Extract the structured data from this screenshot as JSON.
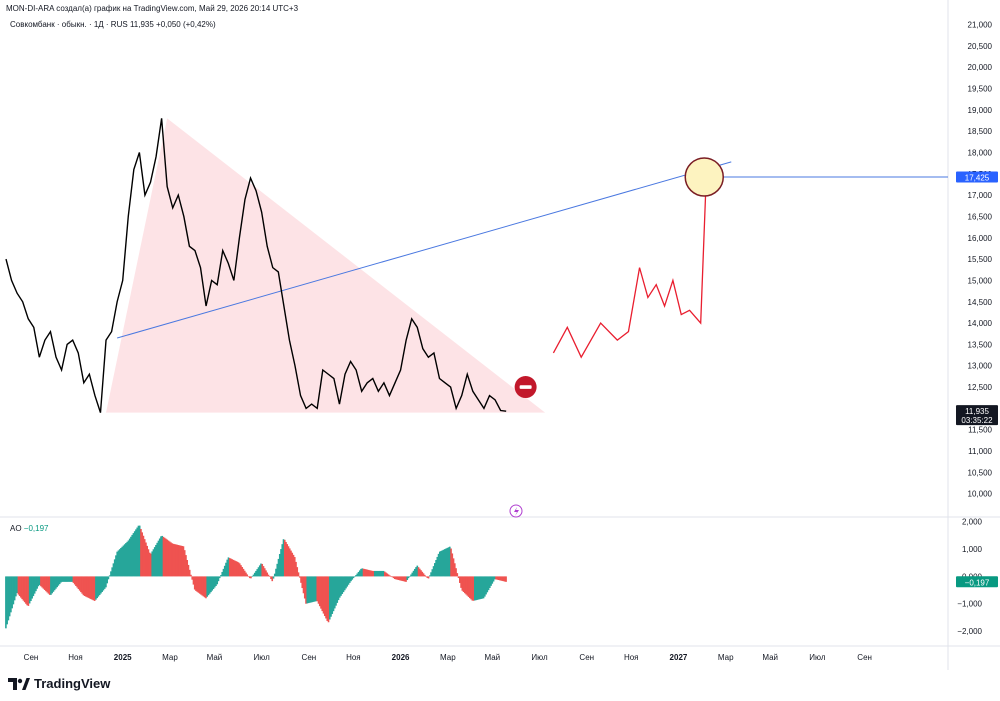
{
  "header": {
    "attribution": "MON-DI-ARA создал(а) график на TradingView.com, Май 29, 2026 20:14 UTC+3",
    "symbol_line": "Совкомбанк · обыкн. · 1Д · RUS",
    "last_price": "11,935",
    "change": "+0,050 (+0,42%)"
  },
  "indicator": {
    "name": "AO",
    "value": "−0,197"
  },
  "price_badges": {
    "target": "17,425",
    "current": "11,935",
    "countdown": "03:35:22",
    "ao": "−0,197"
  },
  "brand": {
    "logo_icon": "tradingview-logo-icon",
    "name": "TradingView"
  },
  "colors": {
    "price_line": "#000000",
    "forecast_line": "#e91e2f",
    "trend_line": "#4a78e0",
    "triangle_fill": "#fde3e6",
    "ao_up": "#26a69a",
    "ao_down": "#ef5350",
    "target_badge": "#2962ff",
    "ao_badge": "#089981",
    "stop_sign": "#c2182b",
    "target_circle": "#fdf3c0"
  },
  "chart_data": [
    {
      "type": "line",
      "name_shown": "Совкомбанк · обыкн. · 1Д",
      "y_axis": {
        "ticks": [
          10000,
          10500,
          11000,
          11500,
          12000,
          12500,
          13000,
          13500,
          14000,
          14500,
          15000,
          15500,
          16000,
          16500,
          17000,
          17500,
          18000,
          18500,
          19000,
          19500,
          20000,
          20500,
          21000
        ],
        "tick_labels": [
          "10,000",
          "10,500",
          "11,000",
          "11,500",
          "12,000",
          "12,500",
          "13,000",
          "13,500",
          "14,000",
          "14,500",
          "15,000",
          "15,500",
          "16,000",
          "16,500",
          "17,000",
          "17,500",
          "18,000",
          "18,500",
          "19,000",
          "19,500",
          "20,000",
          "20,500",
          "21,000"
        ],
        "range": [
          9500,
          21200
        ]
      },
      "x_axis": {
        "tick_labels": [
          "Сен",
          "Ноя",
          "2025",
          "Мар",
          "Май",
          "Июл",
          "Сен",
          "Ноя",
          "2026",
          "Мар",
          "Май",
          "Июл",
          "Сен",
          "Ноя",
          "2027",
          "Мар",
          "Май",
          "Июл",
          "Сен"
        ],
        "tick_values": [
          2024.67,
          2024.83,
          2025.0,
          2025.17,
          2025.33,
          2025.5,
          2025.67,
          2025.83,
          2026.0,
          2026.17,
          2026.33,
          2026.5,
          2026.67,
          2026.83,
          2027.0,
          2027.17,
          2027.33,
          2027.5,
          2027.67
        ],
        "range": [
          2024.58,
          2027.97
        ]
      },
      "price_series": {
        "x": [
          2024.58,
          2024.6,
          2024.62,
          2024.64,
          2024.66,
          2024.68,
          2024.7,
          2024.72,
          2024.74,
          2024.76,
          2024.78,
          2024.8,
          2024.82,
          2024.84,
          2024.86,
          2024.88,
          2024.9,
          2024.92,
          2024.94,
          2024.96,
          2024.98,
          2025.0,
          2025.02,
          2025.04,
          2025.06,
          2025.08,
          2025.1,
          2025.12,
          2025.14,
          2025.16,
          2025.18,
          2025.2,
          2025.22,
          2025.24,
          2025.26,
          2025.28,
          2025.3,
          2025.32,
          2025.34,
          2025.36,
          2025.38,
          2025.4,
          2025.42,
          2025.44,
          2025.46,
          2025.48,
          2025.5,
          2025.52,
          2025.54,
          2025.56,
          2025.58,
          2025.6,
          2025.62,
          2025.64,
          2025.66,
          2025.68,
          2025.7,
          2025.72,
          2025.74,
          2025.76,
          2025.78,
          2025.8,
          2025.82,
          2025.84,
          2025.86,
          2025.88,
          2025.9,
          2025.92,
          2025.94,
          2025.96,
          2025.98,
          2026.0,
          2026.02,
          2026.04,
          2026.06,
          2026.08,
          2026.1,
          2026.12,
          2026.14,
          2026.16,
          2026.18,
          2026.2,
          2026.22,
          2026.24,
          2026.26,
          2026.28,
          2026.3,
          2026.32,
          2026.34,
          2026.36,
          2026.38
        ],
        "y": [
          15500,
          15000,
          14700,
          14500,
          14100,
          13900,
          13200,
          13600,
          13800,
          13200,
          12900,
          13500,
          13600,
          13300,
          12600,
          12800,
          12300,
          11900,
          13600,
          13800,
          14500,
          15000,
          16500,
          17600,
          18000,
          17000,
          17300,
          17900,
          18800,
          17200,
          16700,
          17000,
          16500,
          15800,
          15700,
          15300,
          14400,
          15000,
          14900,
          15700,
          15400,
          15000,
          16000,
          16900,
          17400,
          17100,
          16600,
          15800,
          15300,
          15200,
          14400,
          13600,
          13000,
          12300,
          12000,
          12100,
          12000,
          12900,
          12800,
          12700,
          12100,
          12800,
          13100,
          12900,
          12400,
          12600,
          12700,
          12400,
          12600,
          12300,
          12600,
          12900,
          13600,
          14100,
          13900,
          13400,
          13200,
          13300,
          12700,
          12600,
          12500,
          12000,
          12300,
          12800,
          12400,
          12200,
          12000,
          12300,
          12200,
          11950,
          11935
        ]
      },
      "forecast_series": {
        "x": [
          2026.55,
          2026.6,
          2026.65,
          2026.72,
          2026.78,
          2026.82,
          2026.86,
          2026.89,
          2026.92,
          2026.95,
          2026.98,
          2027.01,
          2027.04,
          2027.08,
          2027.1
        ],
        "y": [
          13300,
          13900,
          13200,
          14000,
          13600,
          13800,
          15300,
          14600,
          14900,
          14400,
          15000,
          14200,
          14300,
          14000,
          17425
        ]
      },
      "target_level": 17425,
      "current_price": 11935
    },
    {
      "type": "bar",
      "name": "AO",
      "y_axis": {
        "ticks": [
          -2000,
          -1000,
          0,
          1000,
          2000
        ],
        "tick_labels": [
          "−2,000",
          "−1,000",
          "0,000",
          "1,000",
          "2,000"
        ],
        "range": [
          -2400,
          2100
        ]
      },
      "ao_keypoints": {
        "x": [
          2024.58,
          2024.62,
          2024.66,
          2024.7,
          2024.74,
          2024.78,
          2024.82,
          2024.86,
          2024.9,
          2024.94,
          2024.98,
          2025.02,
          2025.06,
          2025.1,
          2025.14,
          2025.18,
          2025.22,
          2025.26,
          2025.3,
          2025.34,
          2025.38,
          2025.42,
          2025.46,
          2025.5,
          2025.54,
          2025.58,
          2025.62,
          2025.66,
          2025.7,
          2025.74,
          2025.78,
          2025.82,
          2025.86,
          2025.9,
          2025.94,
          2025.98,
          2026.02,
          2026.06,
          2026.1,
          2026.14,
          2026.18,
          2026.22,
          2026.26,
          2026.3,
          2026.34,
          2026.38
        ],
        "y": [
          -1900,
          -600,
          -1100,
          -300,
          -700,
          -200,
          -200,
          -700,
          -900,
          -400,
          900,
          1300,
          1900,
          800,
          1500,
          1200,
          1100,
          -500,
          -800,
          -300,
          700,
          500,
          -100,
          500,
          -200,
          1400,
          700,
          -1000,
          -900,
          -1700,
          -800,
          -200,
          300,
          200,
          200,
          -100,
          -200,
          400,
          -100,
          900,
          1100,
          -500,
          -900,
          -800,
          -100,
          -200
        ]
      }
    }
  ]
}
